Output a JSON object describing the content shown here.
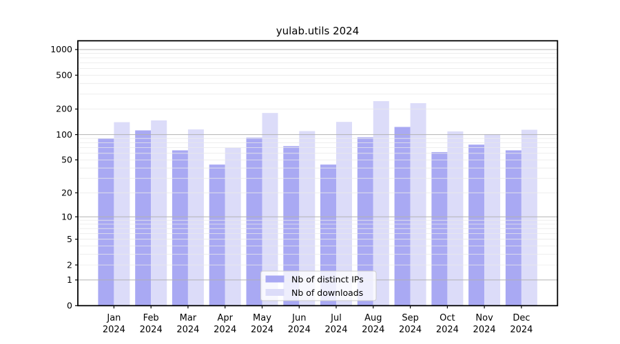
{
  "chart_data": {
    "type": "bar",
    "title": "yulab.utils 2024",
    "categories": [
      "Jan",
      "Feb",
      "Mar",
      "Apr",
      "May",
      "Jun",
      "Jul",
      "Aug",
      "Sep",
      "Oct",
      "Nov",
      "Dec"
    ],
    "x_tick_year": "2024",
    "xlabel": "",
    "ylabel": "",
    "y_scale": "log1p",
    "y_ticks": [
      0,
      1,
      2,
      5,
      10,
      20,
      50,
      100,
      200,
      500,
      1000
    ],
    "ylim": [
      0,
      1250
    ],
    "grid": true,
    "legend_position": "lower center",
    "series": [
      {
        "name": "Nb of distinct IPs",
        "color": "#a9a9f3",
        "values": [
          90,
          112,
          65,
          44,
          92,
          73,
          44,
          93,
          123,
          62,
          76,
          65
        ]
      },
      {
        "name": "Nb of downloads",
        "color": "#dcdcf9",
        "values": [
          140,
          147,
          115,
          70,
          180,
          110,
          141,
          248,
          235,
          109,
          101,
          114
        ]
      }
    ],
    "colors": {
      "major_grid": "#b2b2b2",
      "minor_grid": "#e9e9e9",
      "axis": "#000000",
      "background": "#ffffff",
      "legend_border": "#cccccc"
    }
  }
}
